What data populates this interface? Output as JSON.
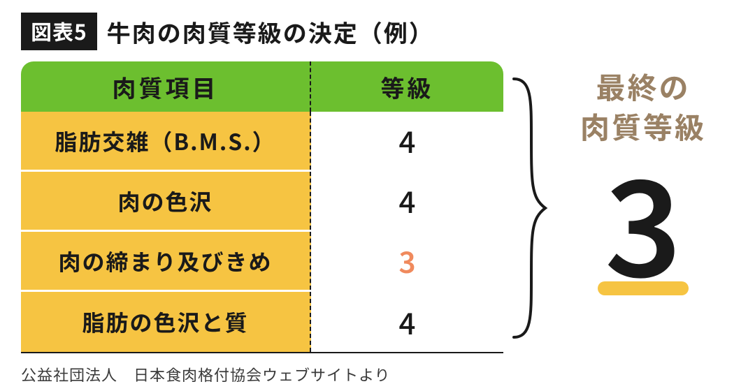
{
  "badge": "図表5",
  "title": "牛肉の肉質等級の決定（例）",
  "table": {
    "header_left": "肉質項目",
    "header_right": "等級",
    "rows": [
      {
        "label": "脂肪交雑（B.M.S.）",
        "grade": "4",
        "highlight": false
      },
      {
        "label": "肉の色沢",
        "grade": "4",
        "highlight": false
      },
      {
        "label": "肉の締まり及びきめ",
        "grade": "3",
        "highlight": true
      },
      {
        "label": "脂肪の色沢と質",
        "grade": "4",
        "highlight": false
      }
    ]
  },
  "result": {
    "label_line1": "最終の",
    "label_line2": "肉質等級",
    "value": "3"
  },
  "source": "公益社団法人　日本食肉格付協会ウェブサイトより",
  "colors": {
    "badge_bg": "#1a1a1a",
    "header_bg": "#6cbf2f",
    "row_label_bg": "#f6c442",
    "highlight_text": "#f08a5d",
    "result_label": "#9a8164",
    "underline": "#f6c442"
  }
}
